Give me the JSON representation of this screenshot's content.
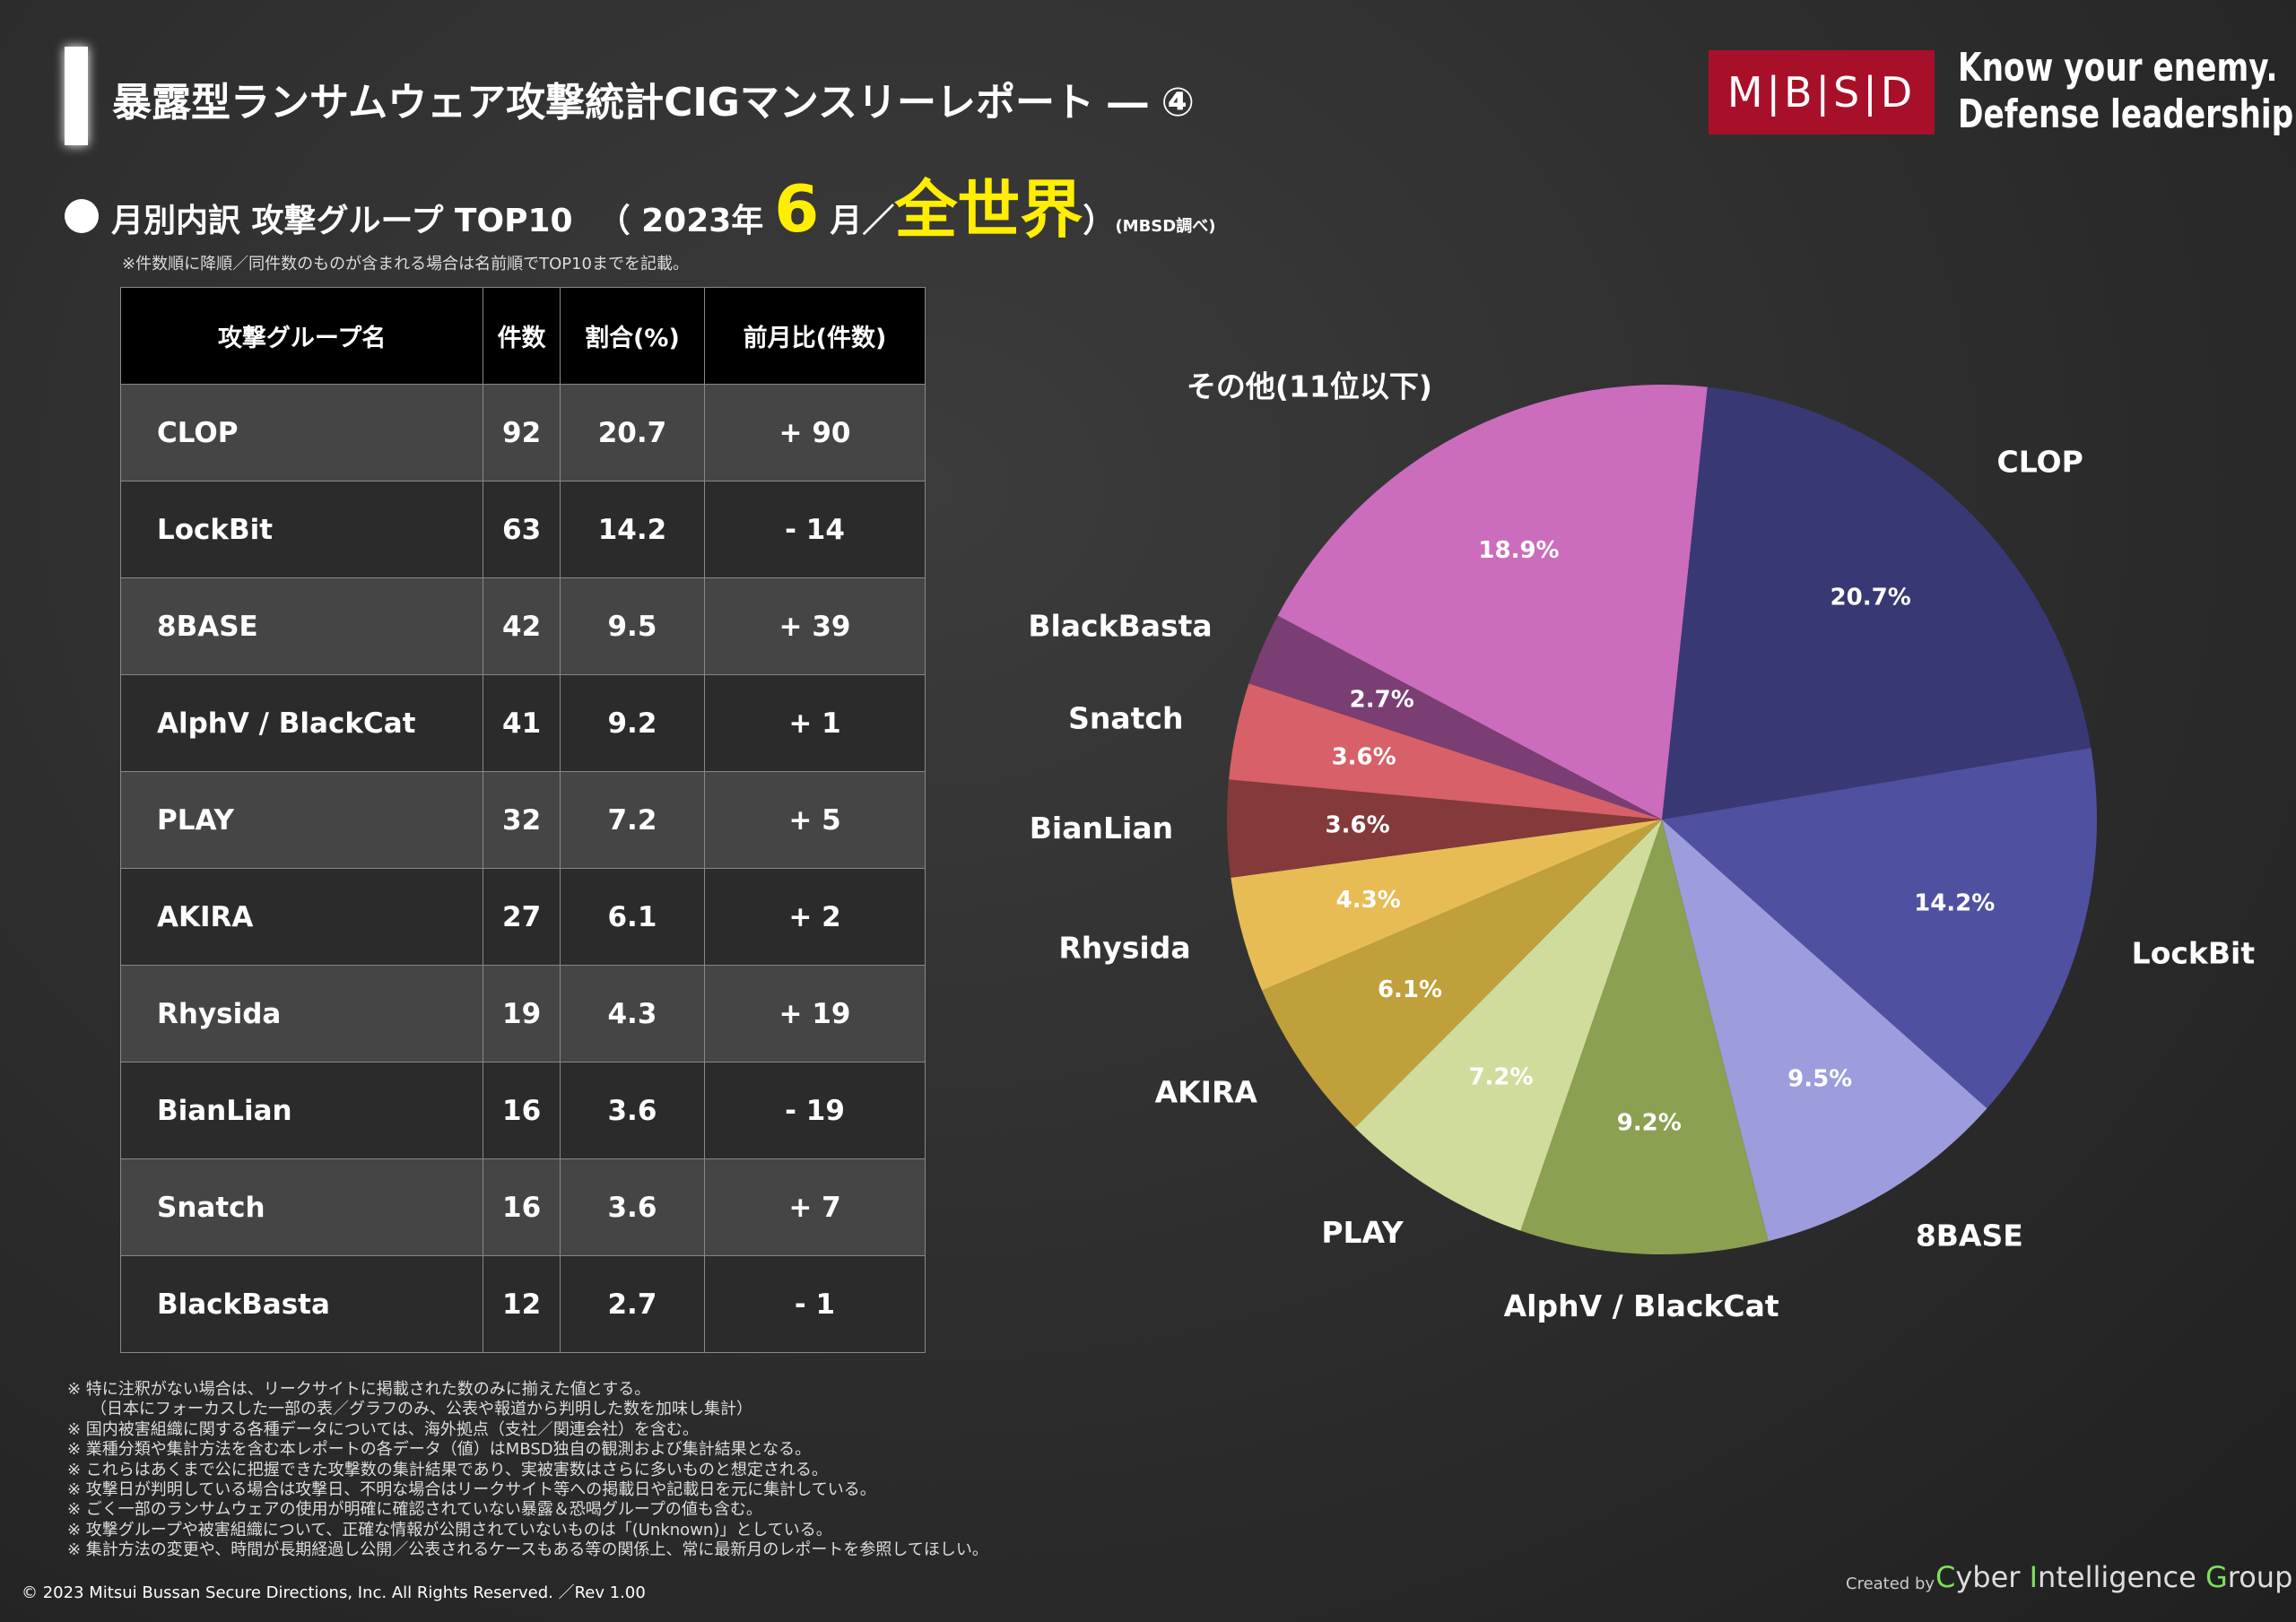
{
  "header": {
    "title": "暴露型ランサムウェア攻撃統計CIGマンスリーレポート ― ④",
    "logo": "M|B|S|D",
    "slogan1": "Know your enemy.",
    "slogan2": "Defense leadership."
  },
  "subtitle": {
    "main": "月別内訳 攻撃グループ TOP10",
    "open": "（ 2023年",
    "month": "6",
    "month_unit": "月／",
    "region": "全世界",
    "close": "）",
    "source": "(MBSD調べ)",
    "note": "※件数順に降順／同件数のものが含まれる場合は名前順でTOP10までを記載。"
  },
  "table": {
    "headers": [
      "攻撃グループ名",
      "件数",
      "割合(%)",
      "前月比(件数)"
    ],
    "rows": [
      [
        "CLOP",
        "92",
        "20.7",
        "+ 90"
      ],
      [
        "LockBit",
        "63",
        "14.2",
        "- 14"
      ],
      [
        "8BASE",
        "42",
        "9.5",
        "+ 39"
      ],
      [
        "AlphV / BlackCat",
        "41",
        "9.2",
        "+ 1"
      ],
      [
        "PLAY",
        "32",
        "7.2",
        "+ 5"
      ],
      [
        "AKIRA",
        "27",
        "6.1",
        "+ 2"
      ],
      [
        "Rhysida",
        "19",
        "4.3",
        "+ 19"
      ],
      [
        "BianLian",
        "16",
        "3.6",
        "- 19"
      ],
      [
        "Snatch",
        "16",
        "3.6",
        "+ 7"
      ],
      [
        "BlackBasta",
        "12",
        "2.7",
        "- 1"
      ]
    ]
  },
  "chart_data": {
    "type": "pie",
    "categories": [
      "CLOP",
      "LockBit",
      "8BASE",
      "AlphV / BlackCat",
      "PLAY",
      "AKIRA",
      "Rhysida",
      "BianLian",
      "Snatch",
      "BlackBasta",
      "その他(11位以下)"
    ],
    "values": [
      20.7,
      14.2,
      9.5,
      9.2,
      7.2,
      6.1,
      4.3,
      3.6,
      3.6,
      2.7,
      18.9
    ],
    "value_labels": [
      "20.7%",
      "14.2%",
      "9.5%",
      "9.2%",
      "7.2%",
      "6.1%",
      "4.3%",
      "3.6%",
      "3.6%",
      "2.7%",
      "18.9%"
    ],
    "colors": [
      "#383874",
      "#5050a0",
      "#9d9ddd",
      "#8ba050",
      "#d0dc9c",
      "#c0a03a",
      "#e8bc55",
      "#843a3a",
      "#d86068",
      "#7a3e72",
      "#cc6cbc"
    ]
  },
  "footnotes": [
    "※ 特に注釈がない場合は、リークサイトに掲載された数のみに揃えた値とする。",
    "（日本にフォーカスした一部の表／グラフのみ、公表や報道から判明した数を加味し集計）",
    "※ 国内被害組織に関する各種データについては、海外拠点（支社／関連会社）を含む。",
    "※ 業種分類や集計方法を含む本レポートの各データ（値）はMBSD独自の観測および集計結果となる。",
    "※ これらはあくまで公に把握できた攻撃数の集計結果であり、実被害数はさらに多いものと想定される。",
    "※ 攻撃日が判明している場合は攻撃日、不明な場合はリークサイト等への掲載日や記載日を元に集計している。",
    "※ ごく一部のランサムウェアの使用が明確に確認されていない暴露＆恐喝グループの値も含む。",
    "※ 攻撃グループや被害組織について、正確な情報が公開されていないものは「(Unknown)」としている。",
    "※ 集計方法の変更や、時間が長期経過し公開／公表されるケースもある等の関係上、常に最新月のレポートを参照してほしい。"
  ],
  "footer": {
    "copyright": "© 2023 Mitsui Bussan Secure Directions, Inc.  All Rights Reserved. ／Rev 1.00",
    "created_by": "Created by",
    "group": "Cyber Intelligence Group"
  }
}
